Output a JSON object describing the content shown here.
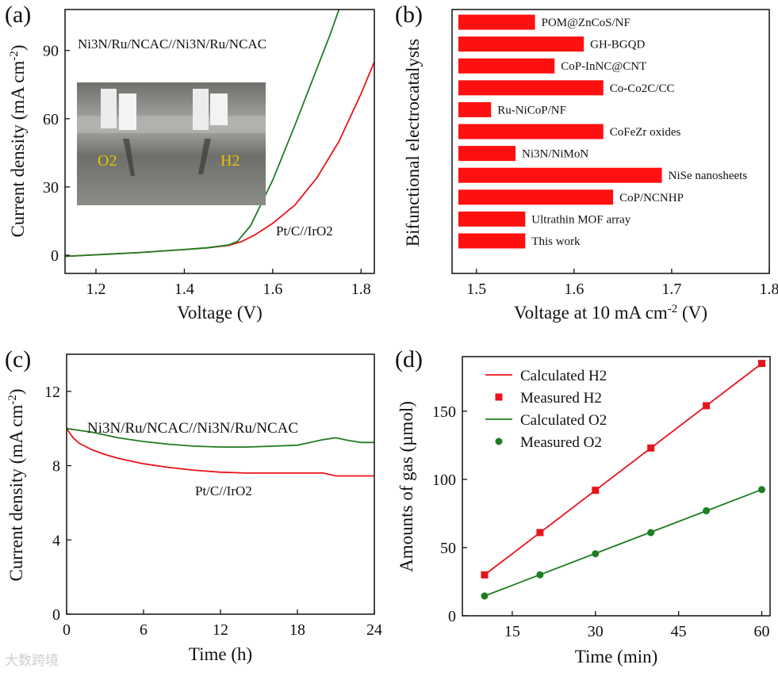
{
  "panel_labels": [
    "(a)",
    "(b)",
    "(c)",
    "(d)"
  ],
  "watermark_text": "大数跨境",
  "inset_photo_labels": {
    "left": "O2",
    "right": "H2"
  },
  "colors": {
    "red": "#e8141a",
    "green": "#1f7d22",
    "bar": "#ff1010"
  },
  "chart_data": [
    {
      "id": "a",
      "type": "line",
      "xlabel": "Voltage (V)",
      "ylabel": "Current density (mA cm-2)",
      "xlim": [
        1.13,
        1.83
      ],
      "ylim": [
        -8,
        108
      ],
      "xticks": [
        1.2,
        1.4,
        1.6,
        1.8
      ],
      "yticks": [
        0,
        30,
        60,
        90
      ],
      "series": [
        {
          "name": "Ni3N/Ru/NCAC//Ni3N/Ru/NCAC",
          "x": [
            1.13,
            1.2,
            1.3,
            1.4,
            1.45,
            1.5,
            1.52,
            1.55,
            1.6,
            1.65,
            1.7,
            1.73,
            1.75
          ],
          "y": [
            -0.5,
            0.2,
            1.2,
            2.5,
            3.2,
            4.5,
            6,
            13,
            33,
            57,
            82,
            97,
            108
          ]
        },
        {
          "name": "Pt/C//IrO2",
          "x": [
            1.13,
            1.2,
            1.3,
            1.4,
            1.45,
            1.5,
            1.53,
            1.56,
            1.6,
            1.65,
            1.7,
            1.75,
            1.8,
            1.83
          ],
          "y": [
            -0.5,
            0.2,
            1.2,
            2.5,
            3.2,
            4.3,
            6,
            9,
            14,
            22,
            34,
            50,
            71,
            85
          ]
        }
      ]
    },
    {
      "id": "b",
      "type": "bar",
      "orientation": "horizontal",
      "xlabel": "Voltage at 10 mA cm-2 (V)",
      "ylabel": "Bifunctional electrocatalysts",
      "xlim": [
        1.475,
        1.8
      ],
      "xticks": [
        1.5,
        1.6,
        1.7,
        1.8
      ],
      "categories": [
        "POM@ZnCoS/NF",
        "GH-BGQD",
        "CoP-InNC@CNT",
        "Co-Co2C/CC",
        "Ru-NiCoP/NF",
        "CoFeZr oxides",
        "Ni3N/NiMoN",
        "NiSe nanosheets",
        "CoP/NCNHP",
        "Ultrathin MOF array",
        "This work"
      ],
      "values": [
        1.56,
        1.61,
        1.58,
        1.63,
        1.515,
        1.63,
        1.54,
        1.69,
        1.64,
        1.55,
        1.55
      ]
    },
    {
      "id": "c",
      "type": "line",
      "xlabel": "Time (h)",
      "ylabel": "Current density (mA cm-2)",
      "xlim": [
        0,
        24
      ],
      "ylim": [
        0,
        14
      ],
      "xticks": [
        0,
        6,
        12,
        18,
        24
      ],
      "yticks": [
        0,
        4,
        8,
        12
      ],
      "series": [
        {
          "name": "Ni3N/Ru/NCAC//Ni3N/Ru/NCAC",
          "x": [
            0,
            1,
            2,
            3,
            4,
            6,
            8,
            10,
            12,
            14,
            16,
            18,
            19,
            20,
            21,
            22,
            23,
            24
          ],
          "y": [
            10,
            9.9,
            9.8,
            9.65,
            9.5,
            9.3,
            9.15,
            9.05,
            9.0,
            9.0,
            9.05,
            9.1,
            9.25,
            9.4,
            9.5,
            9.35,
            9.25,
            9.25
          ]
        },
        {
          "name": "Pt/C//IrO2",
          "x": [
            0,
            0.5,
            1,
            2,
            3,
            4,
            6,
            8,
            10,
            12,
            14,
            16,
            18,
            20,
            21,
            22,
            23,
            24
          ],
          "y": [
            10,
            9.5,
            9.2,
            8.85,
            8.6,
            8.4,
            8.1,
            7.9,
            7.75,
            7.65,
            7.6,
            7.6,
            7.6,
            7.6,
            7.45,
            7.45,
            7.45,
            7.45
          ]
        }
      ]
    },
    {
      "id": "d",
      "type": "scatter",
      "xlabel": "Time (min)",
      "ylabel": "Amounts of gas (µmol)",
      "xlim": [
        6,
        61.5
      ],
      "ylim": [
        0,
        190
      ],
      "xticks": [
        15,
        30,
        45,
        60
      ],
      "yticks": [
        0,
        50,
        100,
        150
      ],
      "legend_position": "top-left",
      "series": [
        {
          "name": "Calculated H2",
          "kind": "line",
          "x": [
            10,
            60
          ],
          "y": [
            30,
            185
          ]
        },
        {
          "name": "Measured H2",
          "kind": "square",
          "x": [
            10,
            20,
            30,
            40,
            50,
            60
          ],
          "y": [
            30,
            61,
            92,
            123,
            154,
            185
          ]
        },
        {
          "name": "Calculated O2",
          "kind": "line",
          "x": [
            10,
            60
          ],
          "y": [
            14.5,
            92.5
          ]
        },
        {
          "name": "Measured O2",
          "kind": "circle",
          "x": [
            10,
            20,
            30,
            40,
            50,
            60
          ],
          "y": [
            14.5,
            30,
            45.5,
            61,
            77,
            92.5
          ]
        }
      ]
    }
  ]
}
